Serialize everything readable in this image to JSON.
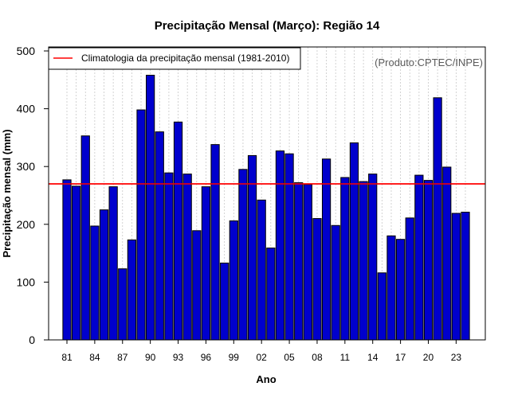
{
  "chart_data": {
    "type": "bar",
    "title": "Precipitação Mensal (Março): Região 14",
    "xlabel": "Ano",
    "ylabel": "Precipitação mensal (mm)",
    "credit": "(Produto:CPTEC/INPE)",
    "ylim": [
      0,
      500
    ],
    "yticks": [
      0,
      100,
      200,
      300,
      400,
      500
    ],
    "years": [
      1981,
      1982,
      1983,
      1984,
      1985,
      1986,
      1987,
      1988,
      1989,
      1990,
      1991,
      1992,
      1993,
      1994,
      1995,
      1996,
      1997,
      1998,
      1999,
      2000,
      2001,
      2002,
      2003,
      2004,
      2005,
      2006,
      2007,
      2008,
      2009,
      2010,
      2011,
      2012,
      2013,
      2014,
      2015,
      2016,
      2017,
      2018,
      2019,
      2020,
      2021,
      2022,
      2023,
      2024
    ],
    "values": [
      277,
      266,
      353,
      197,
      225,
      265,
      123,
      173,
      398,
      458,
      360,
      289,
      377,
      287,
      189,
      265,
      338,
      133,
      206,
      295,
      319,
      242,
      159,
      327,
      322,
      272,
      269,
      210,
      313,
      198,
      281,
      341,
      274,
      287,
      116,
      180,
      174,
      211,
      285,
      276,
      419,
      299,
      219,
      221
    ],
    "xtick_labels": [
      "81",
      "84",
      "87",
      "90",
      "93",
      "96",
      "99",
      "02",
      "05",
      "08",
      "11",
      "14",
      "17",
      "20",
      "23"
    ],
    "xtick_years": [
      1981,
      1984,
      1987,
      1990,
      1993,
      1996,
      1999,
      2002,
      2005,
      2008,
      2011,
      2014,
      2017,
      2020,
      2023
    ],
    "bar_color": "#0000cd",
    "climatology": {
      "label": "Climatologia da precipitação mensal (1981-2010)",
      "value": 270,
      "color": "#ff0000"
    }
  }
}
